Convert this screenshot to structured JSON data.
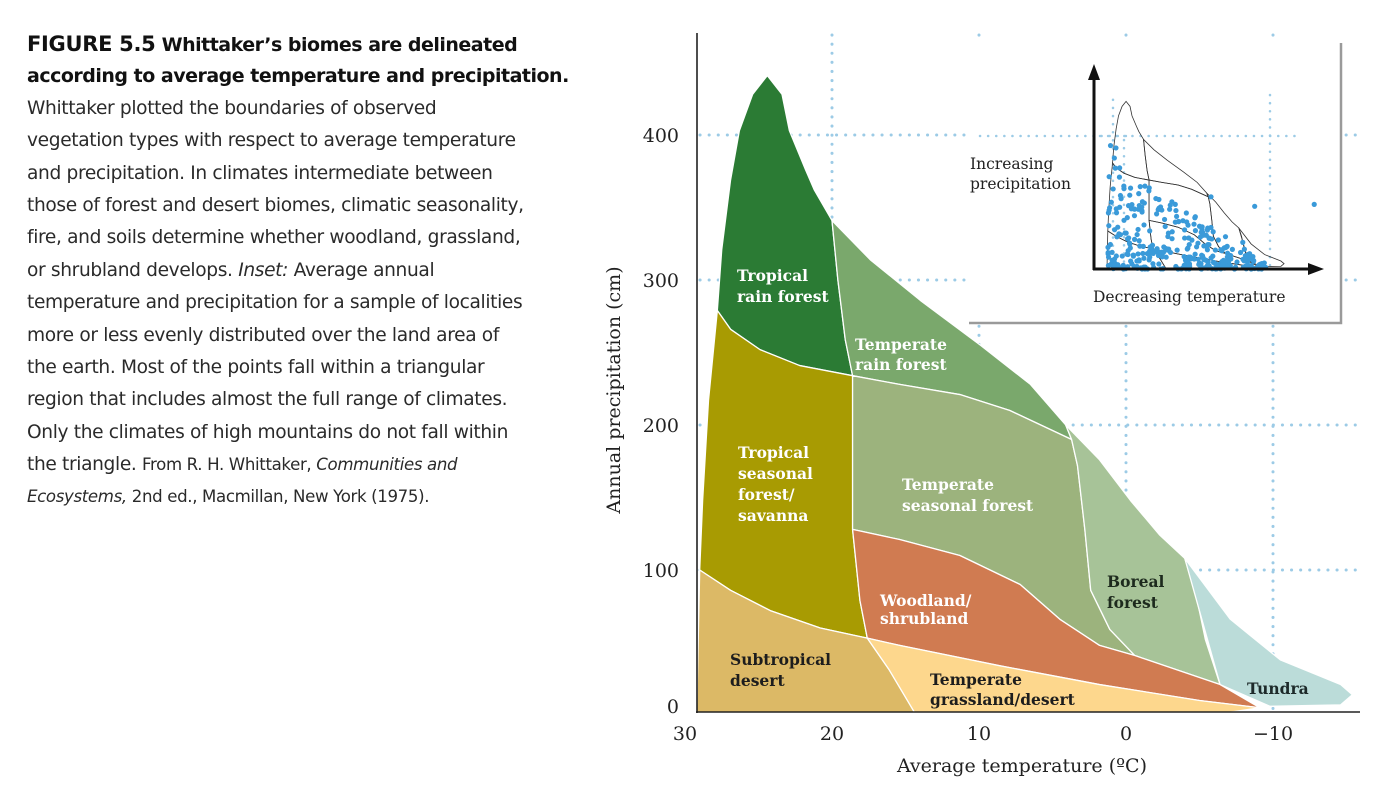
{
  "caption": {
    "figure_label": "FIGURE 5.5",
    "title_line1": "Whittaker’s biomes are delineated",
    "title_line2": "according to average temperature and precipitation.",
    "lines": [
      "Whittaker plotted the boundaries of observed",
      "vegetation types with respect to average temperature",
      "and precipitation. In climates intermediate between",
      "those of forest and desert biomes, climatic seasonality,",
      "fire, and soils determine whether woodland, grassland,",
      "or shrubland develops. ",
      "Inset:",
      " Average annual",
      "temperature and precipitation for a sample of localities",
      "more or less evenly distributed over the land area of",
      "the earth. Most of the points fall within a triangular",
      "region that includes almost the full range of climates.",
      "Only the climates of high mountains do not fall within",
      "the triangle. ",
      "From R. H. Whittaker, ",
      "Communities and",
      "Ecosystems,",
      " 2nd ed., Macmillan, New York (1975)."
    ]
  },
  "chart_data": {
    "type": "area",
    "xlabel": "Average temperature (ºC)",
    "ylabel": "Annual precipitation (cm)",
    "xlim": [
      29.2,
      -16
    ],
    "ylim": [
      0,
      460
    ],
    "x_reversed": true,
    "grid": true,
    "x_ticks": [
      30,
      20,
      10,
      0,
      -10
    ],
    "x_tick_labels": [
      "30",
      "20",
      "10",
      "0",
      "−10"
    ],
    "y_ticks": [
      0,
      100,
      200,
      300,
      400
    ],
    "y_tick_labels": [
      "0",
      "100",
      "200",
      "300",
      "400"
    ],
    "regions": [
      {
        "id": "tropical_rain_forest",
        "lines": [
          "Tropical",
          "rain forest"
        ],
        "color": "#2b7b34",
        "label_color": "#ffffff",
        "polygon": [
          [
            27.8,
            279
          ],
          [
            27.5,
            321
          ],
          [
            26.9,
            369
          ],
          [
            26.3,
            403
          ],
          [
            25.4,
            428
          ],
          [
            24.4,
            441
          ],
          [
            23.4,
            428
          ],
          [
            22.9,
            403
          ],
          [
            21.8,
            376
          ],
          [
            21.2,
            362
          ],
          [
            20.0,
            341
          ],
          [
            19.6,
            300
          ],
          [
            19.1,
            259
          ],
          [
            18.6,
            234
          ],
          [
            22.2,
            241
          ],
          [
            24.9,
            252
          ],
          [
            26.9,
            266
          ]
        ]
      },
      {
        "id": "temperate_rain_forest",
        "lines": [
          "Temperate",
          "rain forest"
        ],
        "color": "#7aa86c",
        "label_color": "#ffffff",
        "polygon": [
          [
            20.0,
            341
          ],
          [
            17.4,
            314
          ],
          [
            14.0,
            286
          ],
          [
            9.9,
            255
          ],
          [
            6.5,
            228
          ],
          [
            4.1,
            200
          ],
          [
            3.7,
            190
          ],
          [
            7.9,
            210
          ],
          [
            11.3,
            221
          ],
          [
            15.4,
            228
          ],
          [
            18.6,
            234
          ],
          [
            19.1,
            259
          ],
          [
            19.6,
            300
          ]
        ]
      },
      {
        "id": "tropical_seasonal_forest_savanna",
        "lines": [
          "Tropical",
          "seasonal",
          "forest/",
          "savanna"
        ],
        "color": "#a89b02",
        "label_color": "#ffffff",
        "polygon": [
          [
            27.8,
            279
          ],
          [
            26.9,
            266
          ],
          [
            24.9,
            252
          ],
          [
            22.2,
            241
          ],
          [
            18.6,
            234
          ],
          [
            18.6,
            128
          ],
          [
            18.1,
            79
          ],
          [
            17.6,
            53
          ],
          [
            20.8,
            60
          ],
          [
            24.2,
            72
          ],
          [
            26.9,
            86
          ],
          [
            29.0,
            100
          ],
          [
            28.8,
            148
          ],
          [
            28.4,
            217
          ]
        ]
      },
      {
        "id": "temperate_seasonal_forest",
        "lines": [
          "Temperate",
          "seasonal forest"
        ],
        "color": "#9cb37d",
        "label_color": "#ffffff",
        "polygon": [
          [
            18.6,
            234
          ],
          [
            15.4,
            228
          ],
          [
            11.3,
            221
          ],
          [
            7.9,
            210
          ],
          [
            3.7,
            190
          ],
          [
            3.3,
            172
          ],
          [
            2.8,
            128
          ],
          [
            2.4,
            86
          ],
          [
            1.1,
            59
          ],
          [
            -0.6,
            41
          ],
          [
            1.8,
            48
          ],
          [
            4.5,
            66
          ],
          [
            7.2,
            90
          ],
          [
            11.3,
            110
          ],
          [
            15.4,
            121
          ],
          [
            18.6,
            128
          ]
        ]
      },
      {
        "id": "boreal_forest",
        "lines": [
          "Boreal",
          "forest"
        ],
        "color": "#a7c398",
        "label_color": "#1d2a1d",
        "polygon": [
          [
            4.1,
            200
          ],
          [
            1.8,
            176
          ],
          [
            -0.3,
            148
          ],
          [
            -2.3,
            124
          ],
          [
            -4.0,
            108
          ],
          [
            -4.7,
            86
          ],
          [
            -5.4,
            52
          ],
          [
            -6.4,
            21
          ],
          [
            -0.6,
            41
          ],
          [
            1.1,
            59
          ],
          [
            2.4,
            86
          ],
          [
            2.8,
            128
          ],
          [
            3.3,
            172
          ],
          [
            3.7,
            190
          ]
        ]
      },
      {
        "id": "tundra",
        "lines": [
          "Tundra"
        ],
        "color": "#bbdcd9",
        "label_color": "#1d2a2a",
        "polygon": [
          [
            -4.0,
            108
          ],
          [
            -7.1,
            66
          ],
          [
            -10.5,
            38
          ],
          [
            -14.6,
            21
          ],
          [
            -15.4,
            14
          ],
          [
            -14.6,
            7
          ],
          [
            -9.8,
            6
          ],
          [
            -6.4,
            21
          ]
        ]
      },
      {
        "id": "woodland_shrubland",
        "lines": [
          "Woodland/",
          "shrubland"
        ],
        "color": "#d07b51",
        "label_color": "#ffffff",
        "polygon": [
          [
            18.6,
            128
          ],
          [
            15.4,
            121
          ],
          [
            11.3,
            110
          ],
          [
            7.2,
            90
          ],
          [
            4.5,
            66
          ],
          [
            1.8,
            48
          ],
          [
            -0.6,
            41
          ],
          [
            -6.4,
            21
          ],
          [
            -9.1,
            5
          ],
          [
            -5.0,
            10
          ],
          [
            1.8,
            21
          ],
          [
            8.6,
            34
          ],
          [
            15.4,
            48
          ],
          [
            17.6,
            53
          ],
          [
            18.1,
            79
          ]
        ]
      },
      {
        "id": "subtropical_desert",
        "lines": [
          "Subtropical",
          "desert"
        ],
        "color": "#dcb966",
        "label_color": "#1d1d1d",
        "polygon": [
          [
            29.0,
            100
          ],
          [
            26.9,
            86
          ],
          [
            24.2,
            72
          ],
          [
            20.8,
            60
          ],
          [
            17.6,
            53
          ],
          [
            16.1,
            31
          ],
          [
            14.4,
            2
          ],
          [
            29.2,
            2
          ]
        ]
      },
      {
        "id": "temperate_grassland_desert",
        "lines": [
          "Temperate",
          "grassland/desert"
        ],
        "color": "#fdd78d",
        "label_color": "#1d1d1d",
        "polygon": [
          [
            17.6,
            53
          ],
          [
            15.4,
            48
          ],
          [
            8.6,
            34
          ],
          [
            1.8,
            21
          ],
          [
            -5.0,
            10
          ],
          [
            -9.1,
            5
          ],
          [
            -7.1,
            2
          ],
          [
            14.4,
            2
          ],
          [
            16.1,
            31
          ]
        ]
      }
    ],
    "inset": {
      "type": "scatter",
      "xlabel": "Decreasing temperature",
      "ylabel_lines": [
        "Increasing",
        "precipitation"
      ],
      "point_color": "#3a9ad9"
    }
  },
  "colors": {
    "grid": "#9ccbe6",
    "axis": "#222222"
  }
}
